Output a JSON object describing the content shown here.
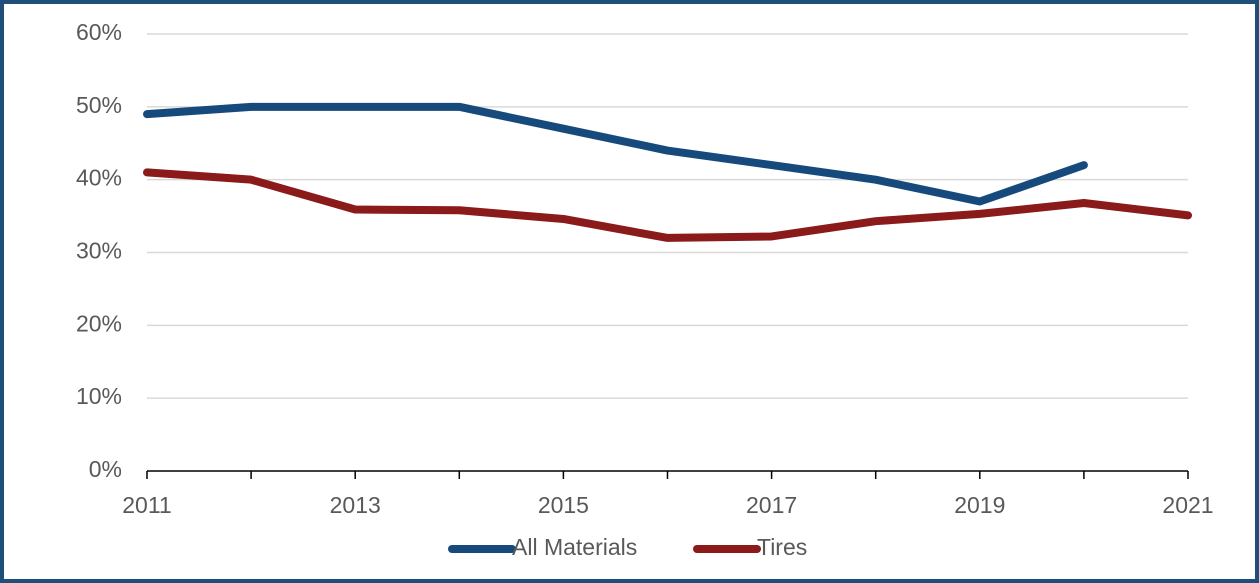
{
  "chart_data": {
    "type": "line",
    "x": [
      2011,
      2012,
      2013,
      2014,
      2015,
      2016,
      2017,
      2018,
      2019,
      2020,
      2021
    ],
    "series": [
      {
        "name": "All Materials",
        "color": "#174a7c",
        "values": [
          49,
          50,
          50,
          50,
          47,
          44,
          42,
          40,
          37,
          42,
          null
        ]
      },
      {
        "name": "Tires",
        "color": "#8b1a1a",
        "values": [
          41,
          40,
          35.9,
          35.8,
          34.6,
          32,
          32.2,
          34.3,
          35.3,
          36.8,
          35.1
        ]
      }
    ],
    "xlim": [
      2011,
      2021
    ],
    "xticks": [
      2011,
      2013,
      2015,
      2017,
      2019,
      2021
    ],
    "x_minor_ticks": [
      2012,
      2014,
      2016,
      2018,
      2020
    ],
    "ylim": [
      0,
      60
    ],
    "yticks": [
      {
        "value": 0,
        "label": "0%"
      },
      {
        "value": 10,
        "label": "10%"
      },
      {
        "value": 20,
        "label": "20%"
      },
      {
        "value": 30,
        "label": "30%"
      },
      {
        "value": 40,
        "label": "40%"
      },
      {
        "value": 50,
        "label": "50%"
      },
      {
        "value": 60,
        "label": "60%"
      }
    ],
    "grid": true,
    "legend": "bottom"
  }
}
